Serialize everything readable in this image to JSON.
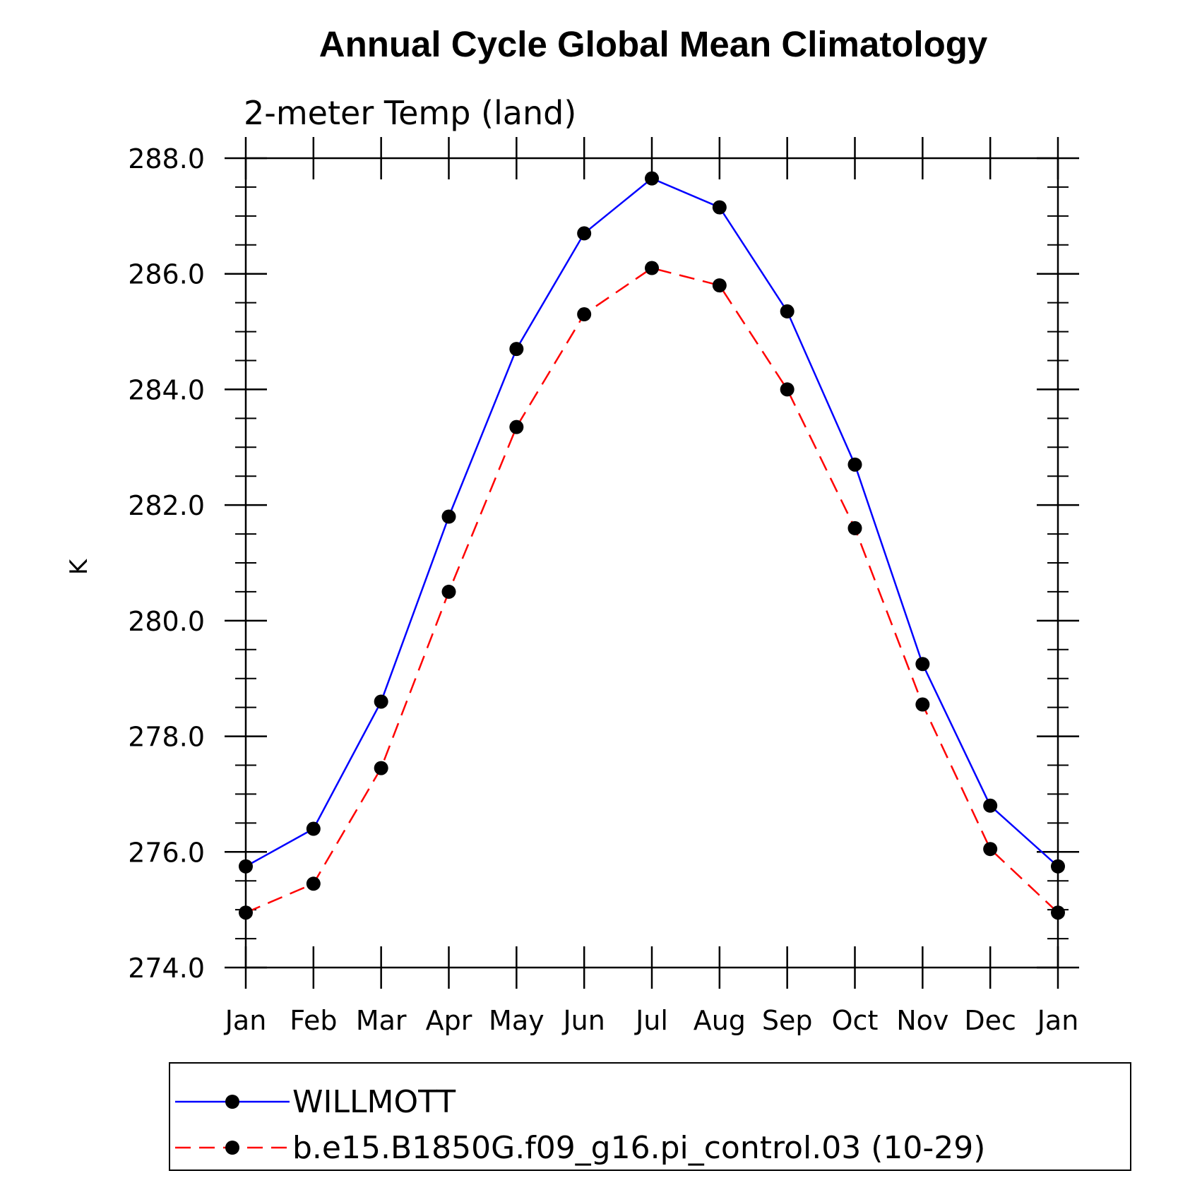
{
  "chart_data": {
    "type": "line",
    "title": "Annual Cycle Global Mean Climatology",
    "subtitle": "2-meter Temp (land)",
    "xlabel": "",
    "ylabel": "K",
    "categories": [
      "Jan",
      "Feb",
      "Mar",
      "Apr",
      "May",
      "Jun",
      "Jul",
      "Aug",
      "Sep",
      "Oct",
      "Nov",
      "Dec",
      "Jan"
    ],
    "ylim": [
      274.0,
      288.0
    ],
    "yticks": [
      "274.0",
      "276.0",
      "278.0",
      "280.0",
      "282.0",
      "284.0",
      "286.0",
      "288.0"
    ],
    "grid": false,
    "legend_position": "bottom",
    "series": [
      {
        "name": "WILLMOTT",
        "color": "#0000ff",
        "dash": "solid",
        "marker": "filled-circle",
        "values": [
          275.75,
          276.4,
          278.6,
          281.8,
          284.7,
          286.7,
          287.65,
          287.15,
          285.35,
          282.7,
          279.25,
          276.8,
          275.75
        ]
      },
      {
        "name": "b.e15.B1850G.f09_g16.pi_control.03 (10-29)",
        "color": "#ff0000",
        "dash": "dashed",
        "marker": "filled-circle",
        "values": [
          274.95,
          275.45,
          277.45,
          280.5,
          283.35,
          285.3,
          286.1,
          285.8,
          284.0,
          281.6,
          278.55,
          276.05,
          274.95
        ]
      }
    ]
  }
}
